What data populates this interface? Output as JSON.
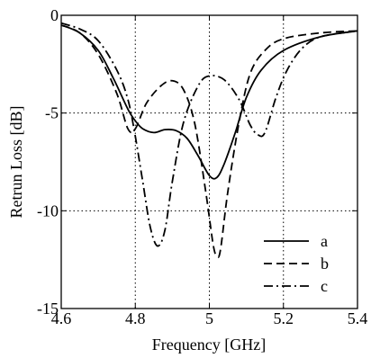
{
  "chart_data": {
    "type": "line",
    "xlabel": "Frequency [GHz]",
    "ylabel": "Retrun Loss [dB]",
    "xlim": [
      4.6,
      5.4
    ],
    "ylim": [
      -15,
      0
    ],
    "x_ticks": [
      4.6,
      4.8,
      5.0,
      5.2,
      5.4
    ],
    "x_tick_labels": [
      "4.6",
      "4.8",
      "5",
      "5.2",
      "5.4"
    ],
    "y_ticks": [
      0,
      -5,
      -10,
      -15
    ],
    "y_tick_labels": [
      "0",
      "-5",
      "-10",
      "-15"
    ],
    "grid": true,
    "legend_position": "bottom-right",
    "series": [
      {
        "name": "a",
        "style": "solid",
        "points": [
          [
            4.6,
            -0.5
          ],
          [
            4.65,
            -0.9
          ],
          [
            4.7,
            -1.8
          ],
          [
            4.74,
            -3.2
          ],
          [
            4.78,
            -4.8
          ],
          [
            4.8,
            -5.4
          ],
          [
            4.82,
            -5.8
          ],
          [
            4.85,
            -6.0
          ],
          [
            4.88,
            -5.85
          ],
          [
            4.91,
            -5.9
          ],
          [
            4.94,
            -6.3
          ],
          [
            4.97,
            -7.2
          ],
          [
            5.0,
            -8.2
          ],
          [
            5.02,
            -8.3
          ],
          [
            5.04,
            -7.6
          ],
          [
            5.07,
            -6.0
          ],
          [
            5.1,
            -4.2
          ],
          [
            5.14,
            -2.8
          ],
          [
            5.2,
            -1.8
          ],
          [
            5.3,
            -1.1
          ],
          [
            5.4,
            -0.8
          ]
        ]
      },
      {
        "name": "b",
        "style": "dashed",
        "points": [
          [
            4.6,
            -0.5
          ],
          [
            4.65,
            -0.9
          ],
          [
            4.7,
            -2.0
          ],
          [
            4.75,
            -4.0
          ],
          [
            4.78,
            -5.8
          ],
          [
            4.8,
            -5.8
          ],
          [
            4.83,
            -4.5
          ],
          [
            4.87,
            -3.6
          ],
          [
            4.9,
            -3.35
          ],
          [
            4.93,
            -3.8
          ],
          [
            4.96,
            -5.5
          ],
          [
            4.99,
            -9.0
          ],
          [
            5.01,
            -11.7
          ],
          [
            5.02,
            -12.3
          ],
          [
            5.03,
            -12.0
          ],
          [
            5.05,
            -9.0
          ],
          [
            5.08,
            -5.5
          ],
          [
            5.11,
            -3.0
          ],
          [
            5.15,
            -1.8
          ],
          [
            5.2,
            -1.2
          ],
          [
            5.3,
            -0.9
          ],
          [
            5.4,
            -0.8
          ]
        ]
      },
      {
        "name": "c",
        "style": "dash-dot",
        "points": [
          [
            4.6,
            -0.4
          ],
          [
            4.65,
            -0.7
          ],
          [
            4.7,
            -1.3
          ],
          [
            4.75,
            -2.8
          ],
          [
            4.78,
            -4.3
          ],
          [
            4.8,
            -6.2
          ],
          [
            4.82,
            -8.5
          ],
          [
            4.84,
            -10.8
          ],
          [
            4.86,
            -11.8
          ],
          [
            4.88,
            -11.0
          ],
          [
            4.9,
            -8.5
          ],
          [
            4.93,
            -5.5
          ],
          [
            4.97,
            -3.6
          ],
          [
            5.0,
            -3.1
          ],
          [
            5.04,
            -3.3
          ],
          [
            5.08,
            -4.3
          ],
          [
            5.11,
            -5.6
          ],
          [
            5.13,
            -6.1
          ],
          [
            5.15,
            -6.0
          ],
          [
            5.18,
            -4.2
          ],
          [
            5.21,
            -2.8
          ],
          [
            5.25,
            -1.7
          ],
          [
            5.3,
            -1.1
          ],
          [
            5.4,
            -0.8
          ]
        ]
      }
    ]
  }
}
